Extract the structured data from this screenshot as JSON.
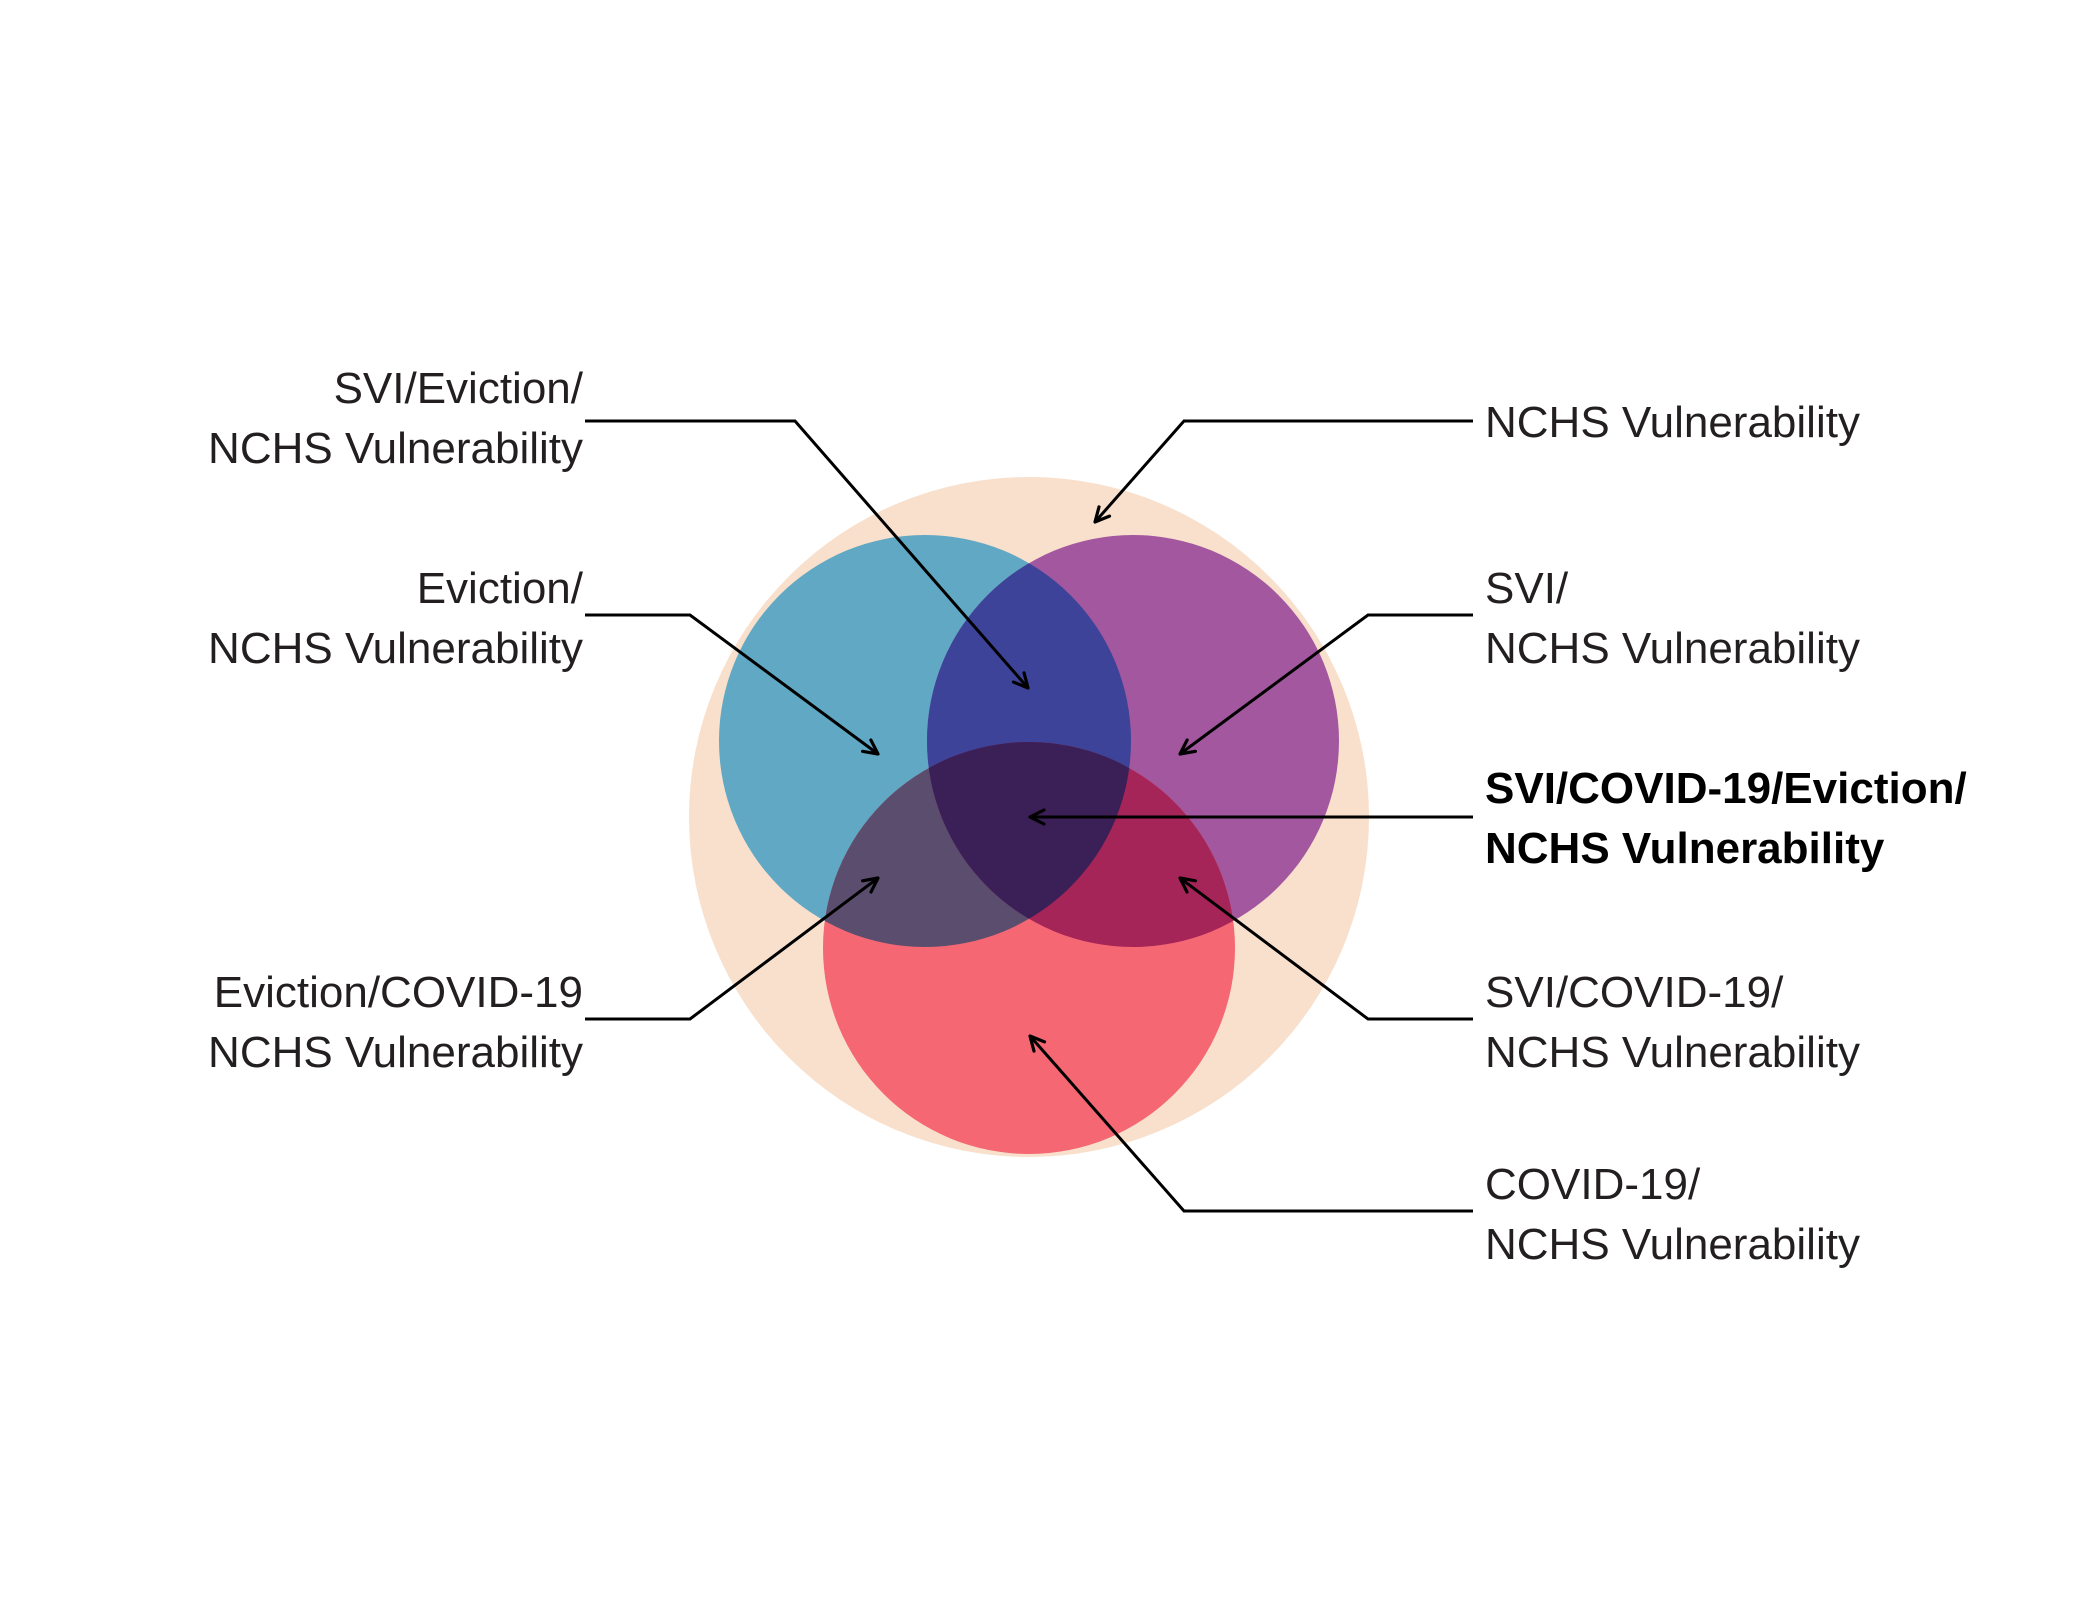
{
  "colors": {
    "background": "#ffffff",
    "outer_region": "#f8e0cc",
    "eviction_circle": "#60a8c4",
    "svi_circle": "#a2579f",
    "covid_circle": "#f46773",
    "eviction_svi_overlap": "#3c4398",
    "eviction_covid_overlap": "#5b4d6e",
    "svi_covid_overlap": "#a62558",
    "all_overlap": "#3b1f57",
    "leader_line": "#000000",
    "label_text": "#231f20"
  },
  "labels": {
    "svi_eviction_nchs": [
      "SVI/Eviction/",
      "NCHS Vulnerability"
    ],
    "eviction_nchs": [
      "Eviction/",
      "NCHS Vulnerability"
    ],
    "eviction_covid_nchs": [
      "Eviction/COVID-19",
      "NCHS Vulnerability"
    ],
    "nchs": [
      "NCHS Vulnerability"
    ],
    "svi_nchs": [
      "SVI/",
      "NCHS Vulnerability"
    ],
    "all": [
      "SVI/COVID-19/Eviction/",
      "NCHS Vulnerability"
    ],
    "svi_covid_nchs": [
      "SVI/COVID-19/",
      "NCHS Vulnerability"
    ],
    "covid_nchs": [
      "COVID-19/",
      "NCHS Vulnerability"
    ]
  }
}
